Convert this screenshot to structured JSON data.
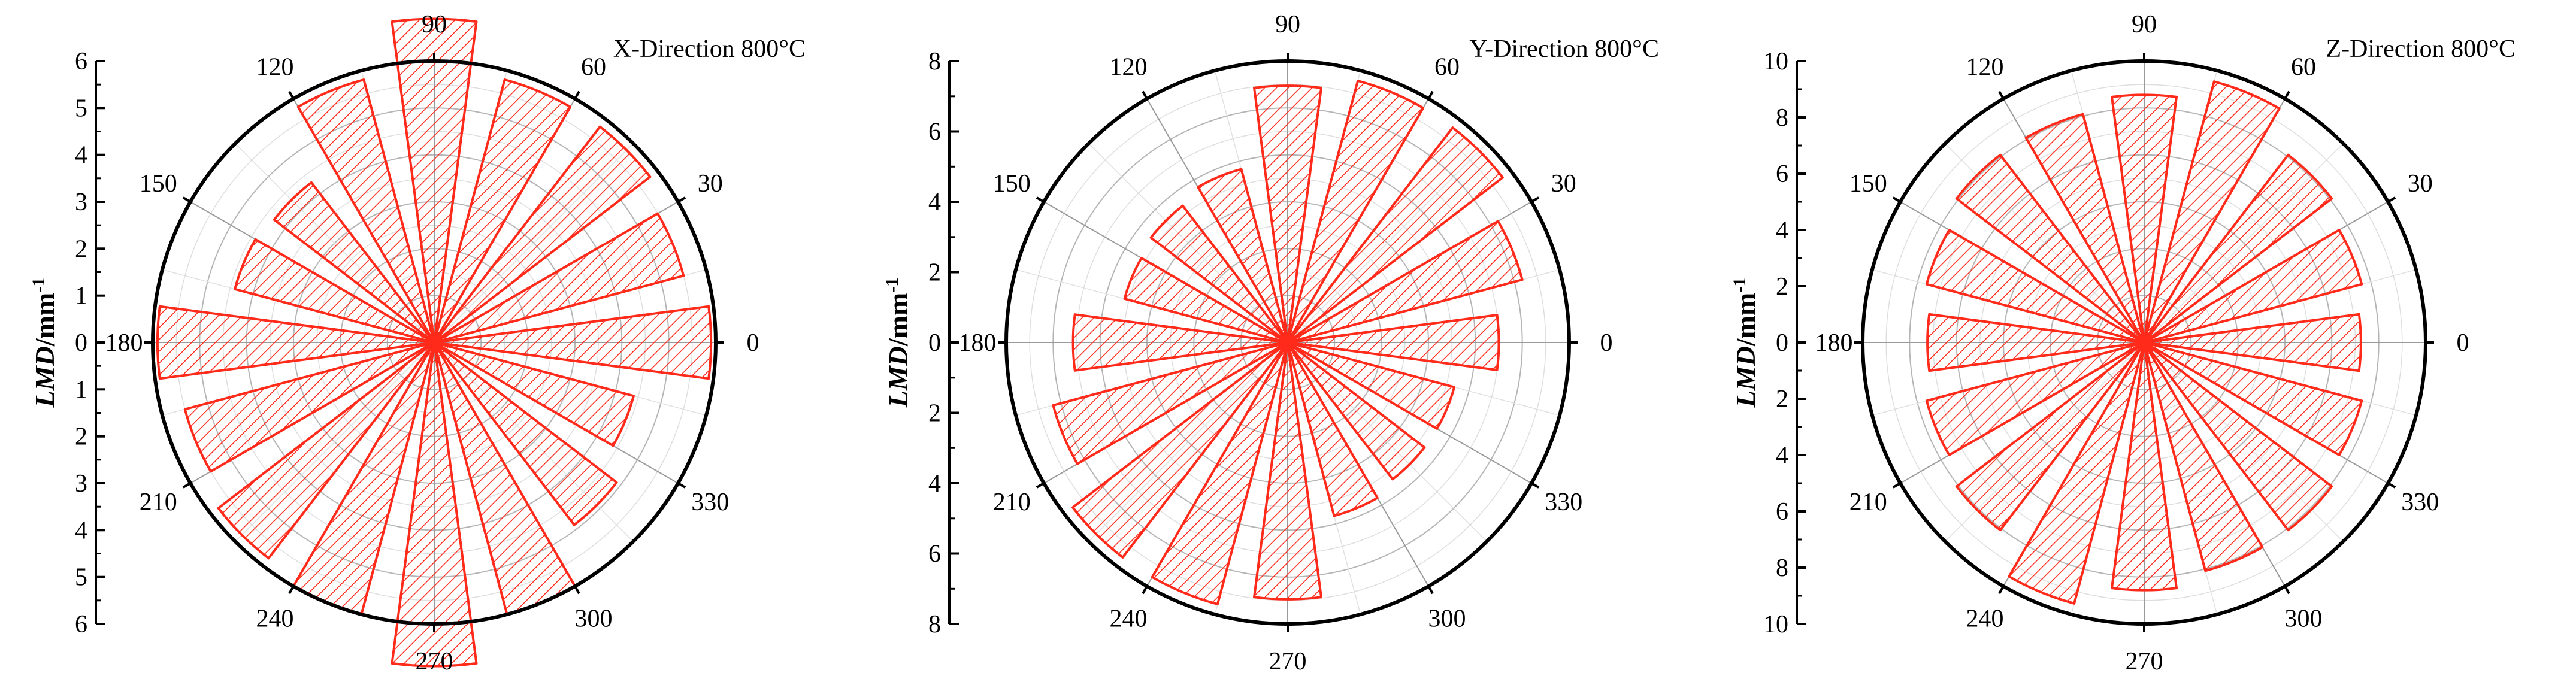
{
  "colors": {
    "bar_edge": "#ff2a1a",
    "hatch": "#ff2a1a",
    "axis": "#000000",
    "grid": "#c8c8c8"
  },
  "chart_data": [
    {
      "type": "polar-rose",
      "title": "X-Direction 800°C",
      "ylabel": "LMD/mm",
      "ylabel_superscript": "-1",
      "rlim": [
        0,
        6
      ],
      "r_ticks": [
        "0",
        "1",
        "2",
        "3",
        "4",
        "5",
        "6"
      ],
      "angle_ticks": [
        "0",
        "30",
        "60",
        "90",
        "120",
        "150",
        "180",
        "210",
        "240",
        "270",
        "300",
        "330"
      ],
      "angles_deg": [
        0,
        22.5,
        45,
        67.5,
        90,
        112.5,
        135,
        157.5,
        180,
        202.5,
        225,
        247.5,
        270,
        292.5,
        315,
        337.5
      ],
      "values": [
        5.9,
        5.5,
        5.8,
        5.8,
        6.9,
        5.8,
        4.3,
        4.4,
        5.9,
        5.5,
        5.8,
        6.0,
        6.9,
        6.0,
        4.9,
        4.4
      ]
    },
    {
      "type": "polar-rose",
      "title": "Y-Direction 800°C",
      "ylabel": "LMD/mm",
      "ylabel_superscript": "-1",
      "rlim": [
        0,
        8
      ],
      "r_ticks": [
        "0",
        "2",
        "4",
        "6",
        "8"
      ],
      "angle_ticks": [
        "0",
        "30",
        "60",
        "90",
        "120",
        "150",
        "180",
        "210",
        "240",
        "270",
        "300",
        "330"
      ],
      "angles_deg": [
        0,
        22.5,
        45,
        67.5,
        90,
        112.5,
        135,
        157.5,
        180,
        202.5,
        225,
        247.5,
        270,
        292.5,
        315,
        337.5
      ],
      "values": [
        6.0,
        6.9,
        7.7,
        7.7,
        7.3,
        5.1,
        4.9,
        4.8,
        6.1,
        6.9,
        7.7,
        7.7,
        7.3,
        5.1,
        4.9,
        4.9
      ]
    },
    {
      "type": "polar-rose",
      "title": "Z-Direction 800°C",
      "ylabel": "LMD/mm",
      "ylabel_superscript": "-1",
      "rlim": [
        0,
        10
      ],
      "r_ticks": [
        "0",
        "2",
        "4",
        "6",
        "8",
        "10"
      ],
      "angle_ticks": [
        "0",
        "30",
        "60",
        "90",
        "120",
        "150",
        "180",
        "210",
        "240",
        "270",
        "300",
        "330"
      ],
      "angles_deg": [
        0,
        22.5,
        45,
        67.5,
        90,
        112.5,
        135,
        157.5,
        180,
        202.5,
        225,
        247.5,
        270,
        292.5,
        315,
        337.5
      ],
      "values": [
        7.7,
        8.0,
        8.4,
        9.6,
        8.8,
        8.4,
        8.4,
        8.0,
        7.7,
        8.0,
        8.4,
        9.6,
        8.8,
        8.4,
        8.4,
        8.0
      ]
    }
  ]
}
